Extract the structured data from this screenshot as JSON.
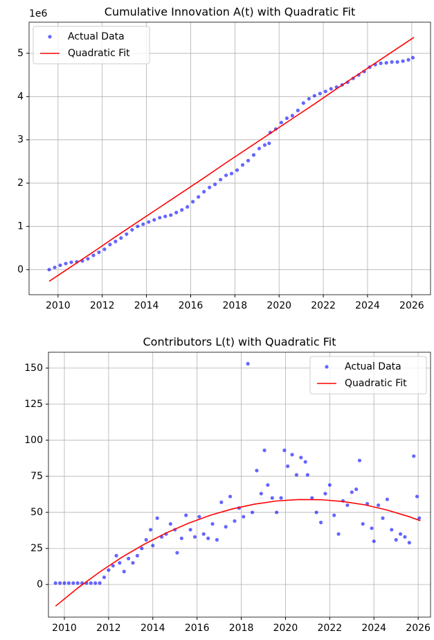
{
  "chart_data": [
    {
      "type": "scatter",
      "title": "Cumulative Innovation A(t) with Quadratic Fit",
      "y_offset_label": "1e6",
      "xlim": [
        2008.69,
        2026.85
      ],
      "ylim": [
        -0.58,
        5.72
      ],
      "xticks": [
        2010,
        2012,
        2014,
        2016,
        2018,
        2020,
        2022,
        2024,
        2026
      ],
      "yticks": [
        0,
        1,
        2,
        3,
        4,
        5
      ],
      "grid": true,
      "legend": "upper left",
      "series": [
        {
          "name": "Actual Data",
          "type": "scatter",
          "color": "#0000ff",
          "x": [
            2009.6,
            2009.85,
            2010.1,
            2010.35,
            2010.6,
            2010.85,
            2011.1,
            2011.35,
            2011.6,
            2011.85,
            2012.1,
            2012.35,
            2012.6,
            2012.85,
            2013.1,
            2013.35,
            2013.6,
            2013.85,
            2014.1,
            2014.35,
            2014.6,
            2014.85,
            2015.1,
            2015.35,
            2015.6,
            2015.85,
            2016.1,
            2016.35,
            2016.6,
            2016.85,
            2017.1,
            2017.35,
            2017.6,
            2017.85,
            2018.1,
            2018.35,
            2018.6,
            2018.85,
            2019.1,
            2019.35,
            2019.55,
            2019.6,
            2019.85,
            2020.1,
            2020.35,
            2020.6,
            2020.85,
            2021.1,
            2021.35,
            2021.6,
            2021.85,
            2022.1,
            2022.35,
            2022.6,
            2022.85,
            2023.1,
            2023.35,
            2023.6,
            2023.85,
            2024.1,
            2024.35,
            2024.6,
            2024.85,
            2025.1,
            2025.35,
            2025.6,
            2025.85,
            2026.05
          ],
          "values": [
            0.0,
            0.05,
            0.1,
            0.14,
            0.17,
            0.18,
            0.2,
            0.25,
            0.33,
            0.4,
            0.47,
            0.58,
            0.65,
            0.73,
            0.82,
            0.92,
            1.0,
            1.05,
            1.1,
            1.15,
            1.2,
            1.23,
            1.26,
            1.32,
            1.38,
            1.45,
            1.57,
            1.68,
            1.8,
            1.9,
            1.97,
            2.08,
            2.18,
            2.22,
            2.3,
            2.42,
            2.52,
            2.65,
            2.8,
            2.88,
            2.92,
            3.17,
            3.25,
            3.4,
            3.5,
            3.56,
            3.68,
            3.85,
            3.95,
            4.02,
            4.07,
            4.12,
            4.18,
            4.22,
            4.27,
            4.33,
            4.42,
            4.5,
            4.58,
            4.68,
            4.74,
            4.77,
            4.78,
            4.8,
            4.8,
            4.82,
            4.85,
            4.9
          ]
        },
        {
          "name": "Quadratic Fit",
          "type": "line",
          "color": "#ff0000",
          "x": [
            2009.6,
            2010.6,
            2011.6,
            2012.6,
            2013.6,
            2014.6,
            2015.6,
            2016.6,
            2017.6,
            2018.6,
            2019.6,
            2020.6,
            2021.6,
            2022.6,
            2023.6,
            2024.6,
            2025.6,
            2026.1
          ],
          "values": [
            -0.27,
            0.07,
            0.41,
            0.76,
            1.1,
            1.44,
            1.78,
            2.12,
            2.47,
            2.81,
            3.15,
            3.49,
            3.83,
            4.18,
            4.52,
            4.86,
            5.2,
            5.37
          ]
        }
      ]
    },
    {
      "type": "scatter",
      "title": "Contributors L(t) with Quadratic Fit",
      "xlim": [
        2009.28,
        2026.56
      ],
      "ylim": [
        -22.6,
        161
      ],
      "xticks": [
        2010,
        2012,
        2014,
        2016,
        2018,
        2020,
        2022,
        2024,
        2026
      ],
      "yticks": [
        0,
        25,
        50,
        75,
        100,
        125,
        150
      ],
      "grid": true,
      "legend": "upper right",
      "series": [
        {
          "name": "Actual Data",
          "type": "scatter",
          "color": "#0000ff",
          "x": [
            2009.6,
            2009.8,
            2010.0,
            2010.2,
            2010.4,
            2010.6,
            2010.8,
            2011.0,
            2011.2,
            2011.4,
            2011.6,
            2011.8,
            2012.0,
            2012.2,
            2012.35,
            2012.5,
            2012.7,
            2012.9,
            2013.1,
            2013.3,
            2013.5,
            2013.7,
            2013.9,
            2014.0,
            2014.2,
            2014.4,
            2014.6,
            2014.8,
            2015.0,
            2015.1,
            2015.3,
            2015.5,
            2015.7,
            2015.9,
            2016.1,
            2016.3,
            2016.5,
            2016.7,
            2016.9,
            2017.1,
            2017.3,
            2017.5,
            2017.7,
            2017.9,
            2018.1,
            2018.3,
            2018.5,
            2018.7,
            2018.9,
            2019.05,
            2019.2,
            2019.4,
            2019.6,
            2019.8,
            2019.95,
            2020.1,
            2020.3,
            2020.5,
            2020.7,
            2020.9,
            2021.0,
            2021.2,
            2021.4,
            2021.6,
            2021.8,
            2022.0,
            2022.2,
            2022.4,
            2022.6,
            2022.8,
            2023.0,
            2023.2,
            2023.35,
            2023.5,
            2023.7,
            2023.9,
            2024.0,
            2024.2,
            2024.4,
            2024.6,
            2024.8,
            2025.0,
            2025.2,
            2025.4,
            2025.6,
            2025.8,
            2025.95,
            2026.05
          ],
          "values": [
            1,
            1,
            1,
            1,
            1,
            1,
            1,
            1,
            1,
            1,
            1,
            5,
            10,
            13,
            20,
            15,
            9,
            18,
            15,
            20,
            25,
            31,
            38,
            27,
            46,
            33,
            35,
            42,
            38,
            22,
            32,
            48,
            38,
            33,
            47,
            35,
            32,
            42,
            31,
            57,
            40,
            61,
            44,
            53,
            47,
            153,
            50,
            79,
            63,
            93,
            69,
            60,
            50,
            60,
            93,
            82,
            90,
            76,
            88,
            85,
            76,
            60,
            50,
            43,
            63,
            69,
            48,
            35,
            58,
            55,
            64,
            66,
            86,
            42,
            56,
            39,
            30,
            55,
            46,
            59,
            38,
            31,
            35,
            33,
            29,
            89,
            61,
            46
          ]
        },
        {
          "name": "Quadratic Fit",
          "type": "line",
          "color": "#ff0000",
          "x": [
            2009.6,
            2010.6,
            2011.6,
            2012.6,
            2013.6,
            2014.6,
            2015.6,
            2016.6,
            2017.6,
            2018.6,
            2019.6,
            2020.6,
            2021.6,
            2022.6,
            2023.6,
            2024.6,
            2025.6,
            2026.1
          ],
          "values": [
            -15,
            -2.5,
            8.7,
            18.9,
            27.8,
            35.7,
            42.4,
            48.0,
            52.4,
            55.7,
            57.9,
            58.9,
            58.8,
            57.5,
            55.2,
            51.6,
            47.0,
            44.2
          ]
        }
      ]
    }
  ]
}
